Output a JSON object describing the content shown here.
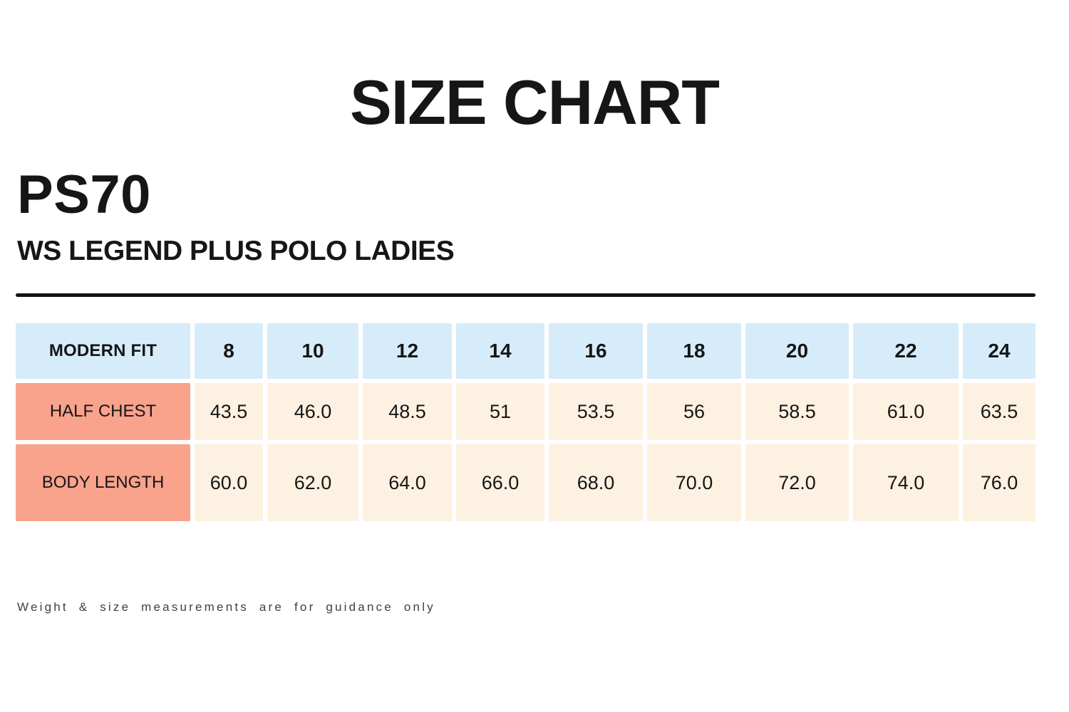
{
  "page": {
    "title": "SIZE CHART",
    "product_code": "PS70",
    "product_name": "WS LEGEND PLUS POLO LADIES",
    "footnote": "Weight & size measurements are for guidance only"
  },
  "table": {
    "fit_label": "MODERN FIT",
    "sizes": [
      "8",
      "10",
      "12",
      "14",
      "16",
      "18",
      "20",
      "22",
      "24"
    ],
    "rows": [
      {
        "label": "HALF CHEST",
        "values": [
          "43.5",
          "46.0",
          "48.5",
          "51",
          "53.5",
          "56",
          "58.5",
          "61.0",
          "63.5"
        ]
      },
      {
        "label": "BODY LENGTH",
        "values": [
          "60.0",
          "62.0",
          "64.0",
          "66.0",
          "68.0",
          "70.0",
          "72.0",
          "74.0",
          "76.0"
        ]
      }
    ]
  },
  "colors": {
    "header_blue": "#d7ecfa",
    "label_salmon": "#f9a28c",
    "cell_cream": "#fdf1e1",
    "text_black": "#161616"
  },
  "chart_data": {
    "type": "table",
    "title": "SIZE CHART",
    "subtitle": "PS70 WS LEGEND PLUS POLO LADIES",
    "columns": [
      "MODERN FIT",
      "8",
      "10",
      "12",
      "14",
      "16",
      "18",
      "20",
      "22",
      "24"
    ],
    "rows": [
      [
        "HALF CHEST",
        "43.5",
        "46.0",
        "48.5",
        "51",
        "53.5",
        "56",
        "58.5",
        "61.0",
        "63.5"
      ],
      [
        "BODY LENGTH",
        "60.0",
        "62.0",
        "64.0",
        "66.0",
        "68.0",
        "70.0",
        "72.0",
        "74.0",
        "76.0"
      ]
    ],
    "footnote": "Weight & size measurements are for guidance only"
  }
}
